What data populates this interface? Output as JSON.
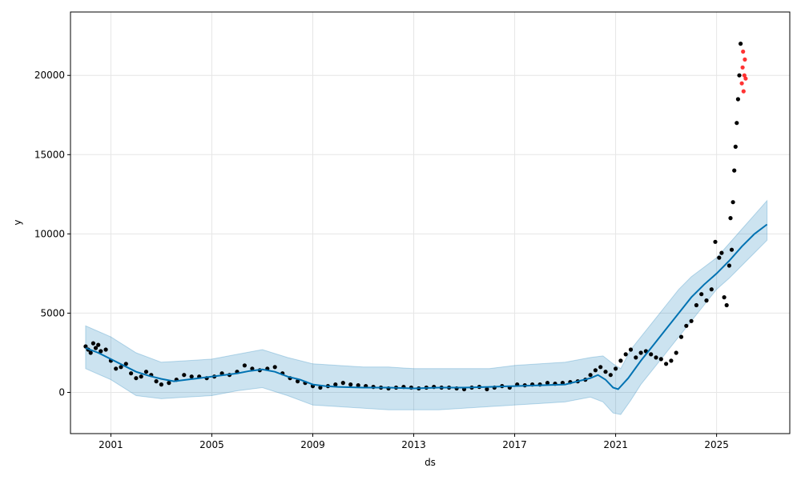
{
  "chart_data": {
    "type": "line",
    "xlabel": "ds",
    "ylabel": "y",
    "xlim": [
      1999.4,
      2027.9
    ],
    "ylim": [
      -2600,
      24000
    ],
    "grid": true,
    "x_ticks": [
      2001,
      2005,
      2009,
      2013,
      2017,
      2021,
      2025
    ],
    "y_ticks": [
      0,
      5000,
      10000,
      15000,
      20000
    ],
    "colors": {
      "forecast_line": "#0072b2",
      "uncertainty_band": "#0072b2",
      "observed_points": "#000000",
      "highlight_points": "#ff0000"
    },
    "series": [
      {
        "role": "forecast_yhat",
        "x": [
          2000.0,
          2000.5,
          2001.0,
          2001.5,
          2002.0,
          2002.5,
          2003.0,
          2003.5,
          2004.0,
          2004.5,
          2005.0,
          2005.5,
          2006.0,
          2006.5,
          2007.0,
          2007.5,
          2008.0,
          2008.5,
          2009.0,
          2009.5,
          2010.0,
          2011.0,
          2012.0,
          2013.0,
          2014.0,
          2015.0,
          2016.0,
          2017.0,
          2018.0,
          2019.0,
          2019.5,
          2020.0,
          2020.3,
          2020.6,
          2020.9,
          2021.1,
          2021.5,
          2022.0,
          2022.5,
          2023.0,
          2023.5,
          2024.0,
          2024.5,
          2025.0,
          2025.5,
          2026.0,
          2026.5,
          2027.0
        ],
        "y": [
          2800,
          2500,
          2100,
          1700,
          1300,
          1050,
          850,
          700,
          800,
          900,
          1000,
          1100,
          1200,
          1350,
          1450,
          1300,
          1000,
          800,
          500,
          400,
          350,
          300,
          300,
          250,
          300,
          300,
          350,
          400,
          450,
          500,
          700,
          900,
          1100,
          800,
          300,
          200,
          900,
          2000,
          3000,
          4000,
          5000,
          6000,
          6800,
          7500,
          8300,
          9200,
          10000,
          10600
        ]
      }
    ],
    "band": {
      "role": "yhat_uncertainty_interval",
      "x": [
        2000.0,
        2001.0,
        2002.0,
        2003.0,
        2004.0,
        2005.0,
        2006.0,
        2007.0,
        2008.0,
        2009.0,
        2010.0,
        2011.0,
        2012.0,
        2013.0,
        2014.0,
        2015.0,
        2016.0,
        2017.0,
        2018.0,
        2019.0,
        2020.0,
        2020.5,
        2020.9,
        2021.2,
        2021.6,
        2022.0,
        2022.5,
        2023.0,
        2023.5,
        2024.0,
        2024.5,
        2025.0,
        2025.5,
        2026.0,
        2026.5,
        2027.0
      ],
      "upper": [
        4200,
        3500,
        2500,
        1900,
        2000,
        2100,
        2400,
        2700,
        2200,
        1800,
        1700,
        1600,
        1600,
        1500,
        1500,
        1500,
        1500,
        1700,
        1800,
        1900,
        2200,
        2300,
        1800,
        1500,
        2700,
        3500,
        4500,
        5500,
        6500,
        7300,
        7900,
        8500,
        9400,
        10300,
        11200,
        12100
      ],
      "lower": [
        1500,
        800,
        -200,
        -400,
        -300,
        -200,
        100,
        300,
        -200,
        -800,
        -900,
        -1000,
        -1100,
        -1100,
        -1100,
        -1000,
        -900,
        -800,
        -700,
        -600,
        -300,
        -600,
        -1300,
        -1400,
        -500,
        500,
        1500,
        2500,
        3500,
        4500,
        5500,
        6500,
        7200,
        8000,
        8800,
        9600
      ]
    },
    "observed": {
      "x": [
        2000.0,
        2000.1,
        2000.2,
        2000.3,
        2000.4,
        2000.5,
        2000.6,
        2000.8,
        2001.0,
        2001.2,
        2001.4,
        2001.6,
        2001.8,
        2002.0,
        2002.2,
        2002.4,
        2002.6,
        2002.8,
        2003.0,
        2003.3,
        2003.6,
        2003.9,
        2004.2,
        2004.5,
        2004.8,
        2005.1,
        2005.4,
        2005.7,
        2006.0,
        2006.3,
        2006.6,
        2006.9,
        2007.2,
        2007.5,
        2007.8,
        2008.1,
        2008.4,
        2008.7,
        2009.0,
        2009.3,
        2009.6,
        2009.9,
        2010.2,
        2010.5,
        2010.8,
        2011.1,
        2011.4,
        2011.7,
        2012.0,
        2012.3,
        2012.6,
        2012.9,
        2013.2,
        2013.5,
        2013.8,
        2014.1,
        2014.4,
        2014.7,
        2015.0,
        2015.3,
        2015.6,
        2015.9,
        2016.2,
        2016.5,
        2016.8,
        2017.1,
        2017.4,
        2017.7,
        2018.0,
        2018.3,
        2018.6,
        2018.9,
        2019.2,
        2019.5,
        2019.8,
        2020.0,
        2020.2,
        2020.4,
        2020.6,
        2020.8,
        2021.0,
        2021.2,
        2021.4,
        2021.6,
        2021.8,
        2022.0,
        2022.2,
        2022.4,
        2022.6,
        2022.8,
        2023.0,
        2023.2,
        2023.4,
        2023.6,
        2023.8,
        2024.0,
        2024.2,
        2024.4,
        2024.6,
        2024.8,
        2024.95,
        2025.1,
        2025.2,
        2025.3,
        2025.4,
        2025.5,
        2025.55,
        2025.6,
        2025.65,
        2025.7,
        2025.75,
        2025.8,
        2025.85,
        2025.9,
        2025.95
      ],
      "y": [
        2900,
        2700,
        2500,
        3100,
        2800,
        3000,
        2600,
        2700,
        2000,
        1500,
        1600,
        1800,
        1200,
        900,
        1000,
        1300,
        1100,
        700,
        500,
        600,
        800,
        1100,
        1000,
        1000,
        900,
        1000,
        1200,
        1100,
        1300,
        1700,
        1500,
        1400,
        1500,
        1600,
        1200,
        900,
        700,
        600,
        400,
        300,
        400,
        500,
        600,
        500,
        450,
        400,
        350,
        300,
        250,
        300,
        350,
        300,
        250,
        300,
        350,
        300,
        300,
        250,
        200,
        300,
        350,
        200,
        300,
        400,
        300,
        500,
        450,
        500,
        500,
        600,
        550,
        600,
        650,
        700,
        800,
        1100,
        1400,
        1600,
        1300,
        1100,
        1500,
        2000,
        2400,
        2700,
        2200,
        2500,
        2600,
        2400,
        2200,
        2100,
        1800,
        2000,
        2500,
        3500,
        4200,
        4500,
        5500,
        6200,
        5800,
        6500,
        9500,
        8500,
        8800,
        6000,
        5500,
        8000,
        11000,
        9000,
        12000,
        14000,
        15500,
        17000,
        18500,
        20000,
        22000
      ]
    },
    "highlighted": {
      "x": [
        2026.0,
        2026.03,
        2026.05,
        2026.07,
        2026.1,
        2026.12,
        2026.15
      ],
      "y": [
        19500,
        20500,
        21500,
        19000,
        20000,
        21000,
        19800
      ]
    }
  }
}
